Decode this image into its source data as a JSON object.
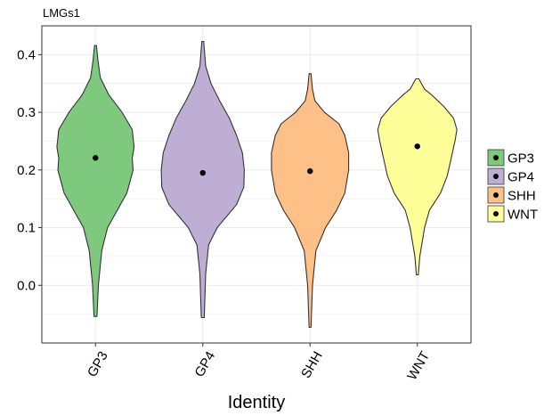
{
  "chart_data": {
    "type": "violin",
    "title": "LMGs1",
    "xlabel": "Identity",
    "ylabel": "",
    "ylim": [
      -0.1,
      0.45
    ],
    "yticks": [
      0.0,
      0.1,
      0.2,
      0.3,
      0.4
    ],
    "ytick_labels": [
      "0.0",
      "0.1",
      "0.2",
      "0.3",
      "0.4"
    ],
    "grid": true,
    "legend_position": "right",
    "categories": [
      "GP3",
      "GP4",
      "SHH",
      "WNT"
    ],
    "series": [
      {
        "name": "GP3",
        "color": "#7fc97f",
        "median": 0.221,
        "min": -0.054,
        "max": 0.416,
        "profile": [
          [
            -0.054,
            0.03
          ],
          [
            0.0,
            0.06
          ],
          [
            0.06,
            0.13
          ],
          [
            0.1,
            0.25
          ],
          [
            0.13,
            0.45
          ],
          [
            0.16,
            0.65
          ],
          [
            0.2,
            0.78
          ],
          [
            0.22,
            0.76
          ],
          [
            0.24,
            0.8
          ],
          [
            0.27,
            0.76
          ],
          [
            0.3,
            0.55
          ],
          [
            0.33,
            0.28
          ],
          [
            0.36,
            0.1
          ],
          [
            0.39,
            0.05
          ],
          [
            0.416,
            0.02
          ]
        ]
      },
      {
        "name": "GP4",
        "color": "#beaed4",
        "median": 0.195,
        "min": -0.056,
        "max": 0.423,
        "profile": [
          [
            -0.056,
            0.03
          ],
          [
            0.02,
            0.06
          ],
          [
            0.07,
            0.12
          ],
          [
            0.1,
            0.3
          ],
          [
            0.14,
            0.7
          ],
          [
            0.17,
            0.85
          ],
          [
            0.2,
            0.86
          ],
          [
            0.23,
            0.82
          ],
          [
            0.26,
            0.7
          ],
          [
            0.29,
            0.55
          ],
          [
            0.32,
            0.35
          ],
          [
            0.35,
            0.17
          ],
          [
            0.38,
            0.06
          ],
          [
            0.423,
            0.02
          ]
        ]
      },
      {
        "name": "SHH",
        "color": "#fdc086",
        "median": 0.198,
        "min": -0.073,
        "max": 0.367,
        "profile": [
          [
            -0.073,
            0.02
          ],
          [
            0.0,
            0.05
          ],
          [
            0.06,
            0.12
          ],
          [
            0.1,
            0.32
          ],
          [
            0.13,
            0.55
          ],
          [
            0.16,
            0.72
          ],
          [
            0.2,
            0.8
          ],
          [
            0.23,
            0.8
          ],
          [
            0.26,
            0.72
          ],
          [
            0.28,
            0.6
          ],
          [
            0.3,
            0.3
          ],
          [
            0.32,
            0.1
          ],
          [
            0.34,
            0.05
          ],
          [
            0.367,
            0.02
          ]
        ]
      },
      {
        "name": "WNT",
        "color": "#ffff99",
        "median": 0.241,
        "min": 0.018,
        "max": 0.358,
        "profile": [
          [
            0.018,
            0.02
          ],
          [
            0.05,
            0.05
          ],
          [
            0.1,
            0.15
          ],
          [
            0.13,
            0.25
          ],
          [
            0.16,
            0.48
          ],
          [
            0.19,
            0.62
          ],
          [
            0.22,
            0.7
          ],
          [
            0.25,
            0.78
          ],
          [
            0.27,
            0.82
          ],
          [
            0.29,
            0.75
          ],
          [
            0.31,
            0.55
          ],
          [
            0.33,
            0.3
          ],
          [
            0.34,
            0.15
          ],
          [
            0.358,
            0.03
          ]
        ]
      }
    ]
  }
}
